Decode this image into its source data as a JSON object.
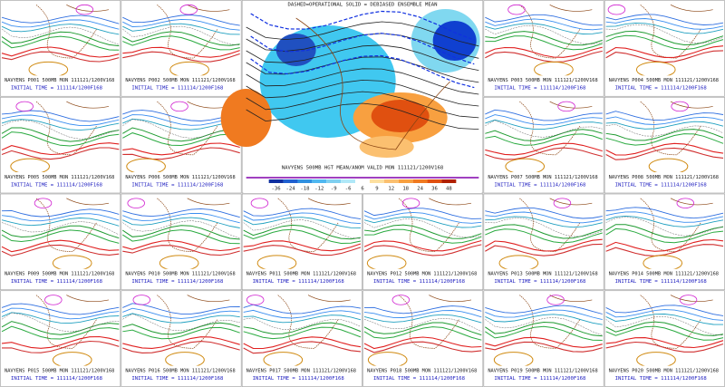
{
  "center": {
    "title": "DASHED=OPERATIONAL  SOLID = DEBIASED ENSEMBLE MEAN",
    "caption": "NAVYENS 500MB HGT MEAN/ANOM VALID MON 111121/1200V168",
    "colorbar_labels": [
      "-36",
      "-24",
      "-18",
      "-12",
      "-9",
      "-6",
      "6",
      "9",
      "12",
      "18",
      "24",
      "36",
      "48"
    ]
  },
  "panels": [
    {
      "label": "NAVYENS P001 500MB MON 111121/1200V168",
      "initial_time": "INITIAL TIME = 111114/1200F168"
    },
    {
      "label": "NAVYENS P002 500MB MON 111121/1200V168",
      "initial_time": "INITIAL TIME = 111114/1200F168"
    },
    {
      "label": "NAVYENS P003 500MB MON 111121/1200V168",
      "initial_time": "INITIAL TIME = 111114/1200F168"
    },
    {
      "label": "NAVYENS P004 500MB MON 111121/1200V168",
      "initial_time": "INITIAL TIME = 111114/1200F168"
    },
    {
      "label": "NAVYENS P005 500MB MON 111121/1200V168",
      "initial_time": "INITIAL TIME = 111114/1200F168"
    },
    {
      "label": "NAVYENS P006 500MB MON 111121/1200V168",
      "initial_time": "INITIAL TIME = 111114/1200F168"
    },
    {
      "label": "NAVYENS P007 500MB MON 111121/1200V168",
      "initial_time": "INITIAL TIME = 111114/1200F168"
    },
    {
      "label": "NAVYENS P008 500MB MON 111121/1200V168",
      "initial_time": "INITIAL TIME = 111114/1200F168"
    },
    {
      "label": "NAVYENS P009 500MB MON 111121/1200V168",
      "initial_time": "INITIAL TIME = 111114/1200F168"
    },
    {
      "label": "NAVYENS P010 500MB MON 111121/1200V168",
      "initial_time": "INITIAL TIME = 111114/1200F168"
    },
    {
      "label": "NAVYENS P011 500MB MON 111121/1200V168",
      "initial_time": "INITIAL TIME = 111114/1200F168"
    },
    {
      "label": "NAVYENS P012 500MB MON 111121/1200V168",
      "initial_time": "INITIAL TIME = 111114/1200F168"
    },
    {
      "label": "NAVYENS P013 500MB MON 111121/1200V168",
      "initial_time": "INITIAL TIME = 111114/1200F168"
    },
    {
      "label": "NAVYENS P014 500MB MON 111121/1200V168",
      "initial_time": "INITIAL TIME = 111114/1200F168"
    },
    {
      "label": "NAVYENS P015 500MB MON 111121/1200V168",
      "initial_time": "INITIAL TIME = 111114/1200F168"
    },
    {
      "label": "NAVYENS P016 500MB MON 111121/1200V168",
      "initial_time": "INITIAL TIME = 111114/1200F168"
    },
    {
      "label": "NAVYENS P017 500MB MON 111121/1200V168",
      "initial_time": "INITIAL TIME = 111114/1200F168"
    },
    {
      "label": "NAVYENS P018 500MB MON 111121/1200V168",
      "initial_time": "INITIAL TIME = 111114/1200F168"
    },
    {
      "label": "NAVYENS P019 500MB MON 111121/1200V168",
      "initial_time": "INITIAL TIME = 111114/1200F168"
    },
    {
      "label": "NAVYENS P020 500MB MON 111121/1200V168",
      "initial_time": "INITIAL TIME = 111114/1200F168"
    }
  ]
}
